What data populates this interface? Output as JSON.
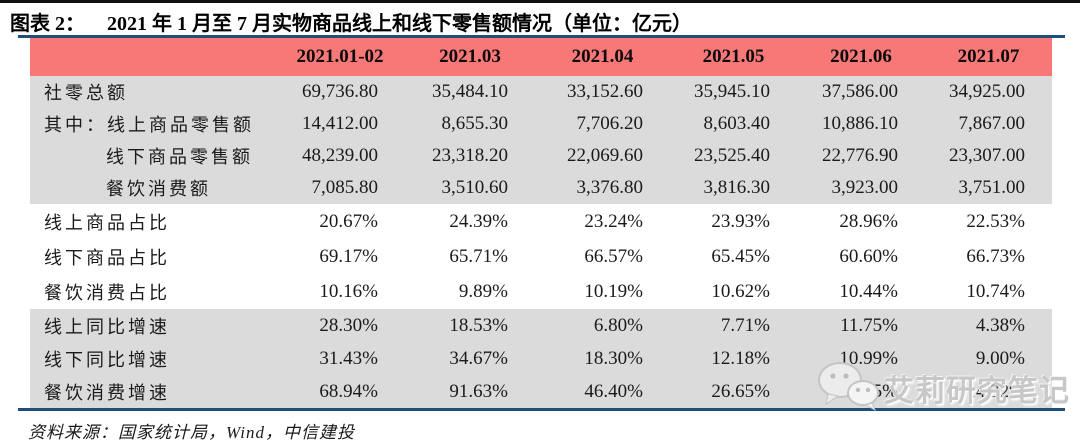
{
  "header": {
    "figure_label": "图表 2：",
    "figure_title": "2021 年 1 月至 7 月实物商品线上和线下零售额情况（单位：亿元）"
  },
  "chart_data": {
    "type": "table",
    "title": "2021年1月至7月实物商品线上和线下零售额情况",
    "unit": "亿元",
    "columns": [
      "2021.01-02",
      "2021.03",
      "2021.04",
      "2021.05",
      "2021.06",
      "2021.07"
    ],
    "rows": [
      {
        "label": "社零总额",
        "indent": 0,
        "band": "a",
        "values": [
          "69,736.80",
          "35,484.10",
          "33,152.60",
          "35,945.10",
          "37,586.00",
          "34,925.00"
        ]
      },
      {
        "label": "其中：线上商品零售额",
        "indent": 0,
        "band": "a",
        "values": [
          "14,412.00",
          "8,655.30",
          "7,706.20",
          "8,603.40",
          "10,886.10",
          "7,867.00"
        ]
      },
      {
        "label": "线下商品零售额",
        "indent": 1,
        "band": "a",
        "values": [
          "48,239.00",
          "23,318.20",
          "22,069.60",
          "23,525.40",
          "22,776.90",
          "23,307.00"
        ]
      },
      {
        "label": "餐饮消费额",
        "indent": 1,
        "band": "a",
        "values": [
          "7,085.80",
          "3,510.60",
          "3,376.80",
          "3,816.30",
          "3,923.00",
          "3,751.00"
        ]
      },
      {
        "label": "线上商品占比",
        "indent": 0,
        "band": "b",
        "values": [
          "20.67%",
          "24.39%",
          "23.24%",
          "23.93%",
          "28.96%",
          "22.53%"
        ]
      },
      {
        "label": "线下商品占比",
        "indent": 0,
        "band": "b",
        "values": [
          "69.17%",
          "65.71%",
          "66.57%",
          "65.45%",
          "60.60%",
          "66.73%"
        ]
      },
      {
        "label": "餐饮消费占比",
        "indent": 0,
        "band": "b",
        "values": [
          "10.16%",
          "9.89%",
          "10.19%",
          "10.62%",
          "10.44%",
          "10.74%"
        ]
      },
      {
        "label": "线上同比增速",
        "indent": 0,
        "band": "c",
        "values": [
          "28.30%",
          "18.53%",
          "6.80%",
          "7.71%",
          "11.75%",
          "4.38%"
        ]
      },
      {
        "label": "线下同比增速",
        "indent": 0,
        "band": "c",
        "values": [
          "31.43%",
          "34.67%",
          "18.30%",
          "12.18%",
          "10.99%",
          "9.00%"
        ]
      },
      {
        "label": "餐饮消费增速",
        "indent": 0,
        "band": "c",
        "values": [
          "68.94%",
          "91.63%",
          "46.40%",
          "26.65%",
          "20.25%",
          "14.32%"
        ]
      }
    ]
  },
  "footer": {
    "source": "资料来源：国家统计局，Wind，中信建投"
  },
  "watermark": {
    "text": "艾莉研究笔记",
    "icon": "wechat-icon"
  },
  "colors": {
    "header_bg": "#F87878",
    "band_gray": "#DBDBDB",
    "rule_blue": "#1F4E79",
    "top_line": "#101010"
  }
}
